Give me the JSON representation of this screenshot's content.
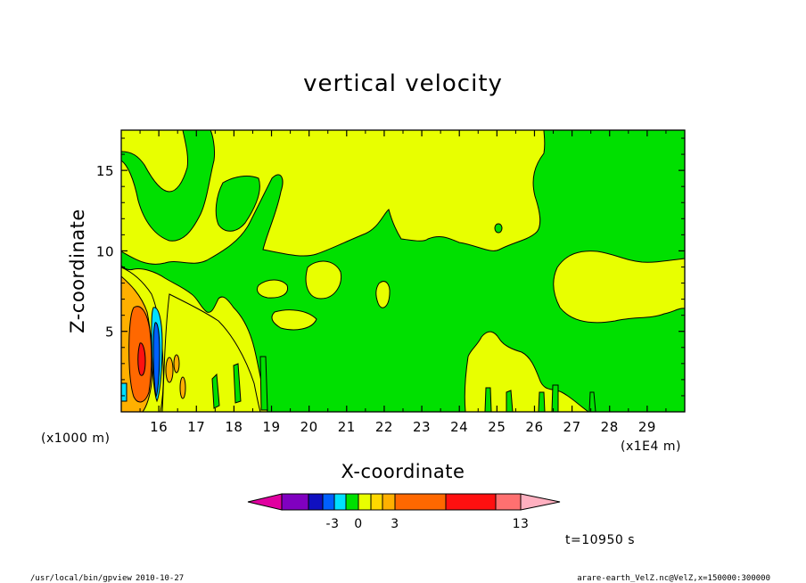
{
  "chart_data": {
    "type": "heatmap",
    "title": "vertical velocity",
    "xlabel": "X-coordinate",
    "ylabel": "Z-coordinate",
    "x_unit_left": "(x1000 m)",
    "x_unit_right": "(x1E4 m)",
    "xlim": [
      15,
      30
    ],
    "ylim": [
      0,
      17.5
    ],
    "x_ticks": [
      16,
      17,
      18,
      19,
      20,
      21,
      22,
      23,
      24,
      25,
      26,
      27,
      28,
      29
    ],
    "y_ticks": [
      5,
      10,
      15
    ],
    "colorbar": {
      "colors": [
        "#e000a0",
        "#8000c0",
        "#1010c0",
        "#0060ff",
        "#00e0ff",
        "#00e000",
        "#e8ff00",
        "#ffd800",
        "#ffb000",
        "#ff6800",
        "#ff1010",
        "#ff7070",
        "#ffb0c0"
      ],
      "tick_labels": [
        "-3",
        "0",
        "3",
        "13"
      ],
      "tick_values": [
        -3,
        0,
        3,
        13
      ],
      "extend": "both"
    },
    "dominant_values": [
      {
        "region": "left edge near x=15.5, z=1-7",
        "value_range": "3 to 13 (orange/red core)"
      },
      {
        "region": "x=15.8-16, z=1-6",
        "value_range": "-3 to -1 (blue/cyan)"
      },
      {
        "region": "upper left z>12",
        "value_range": "0 to 1 (yellow)"
      },
      {
        "region": "center x=19-25, z=0-10",
        "value_range": "-1 to 0 (green)"
      },
      {
        "region": "lower right x=24-30, z=0-4",
        "value_range": "0 to 1 (yellow)"
      }
    ],
    "grid": false
  },
  "annotations": {
    "time": "t=10950 s",
    "program": "/usr/local/bin/gpview",
    "date": "2010-10-27",
    "source": "arare-earth_VelZ.nc@VelZ,x=150000:300000"
  },
  "colors": {
    "yellow": "#e8ff00",
    "green": "#00e000",
    "orange": "#ff6800",
    "light_orange": "#ffb000",
    "red": "#ff1010",
    "cyan": "#00e0ff",
    "blue": "#0060ff"
  }
}
